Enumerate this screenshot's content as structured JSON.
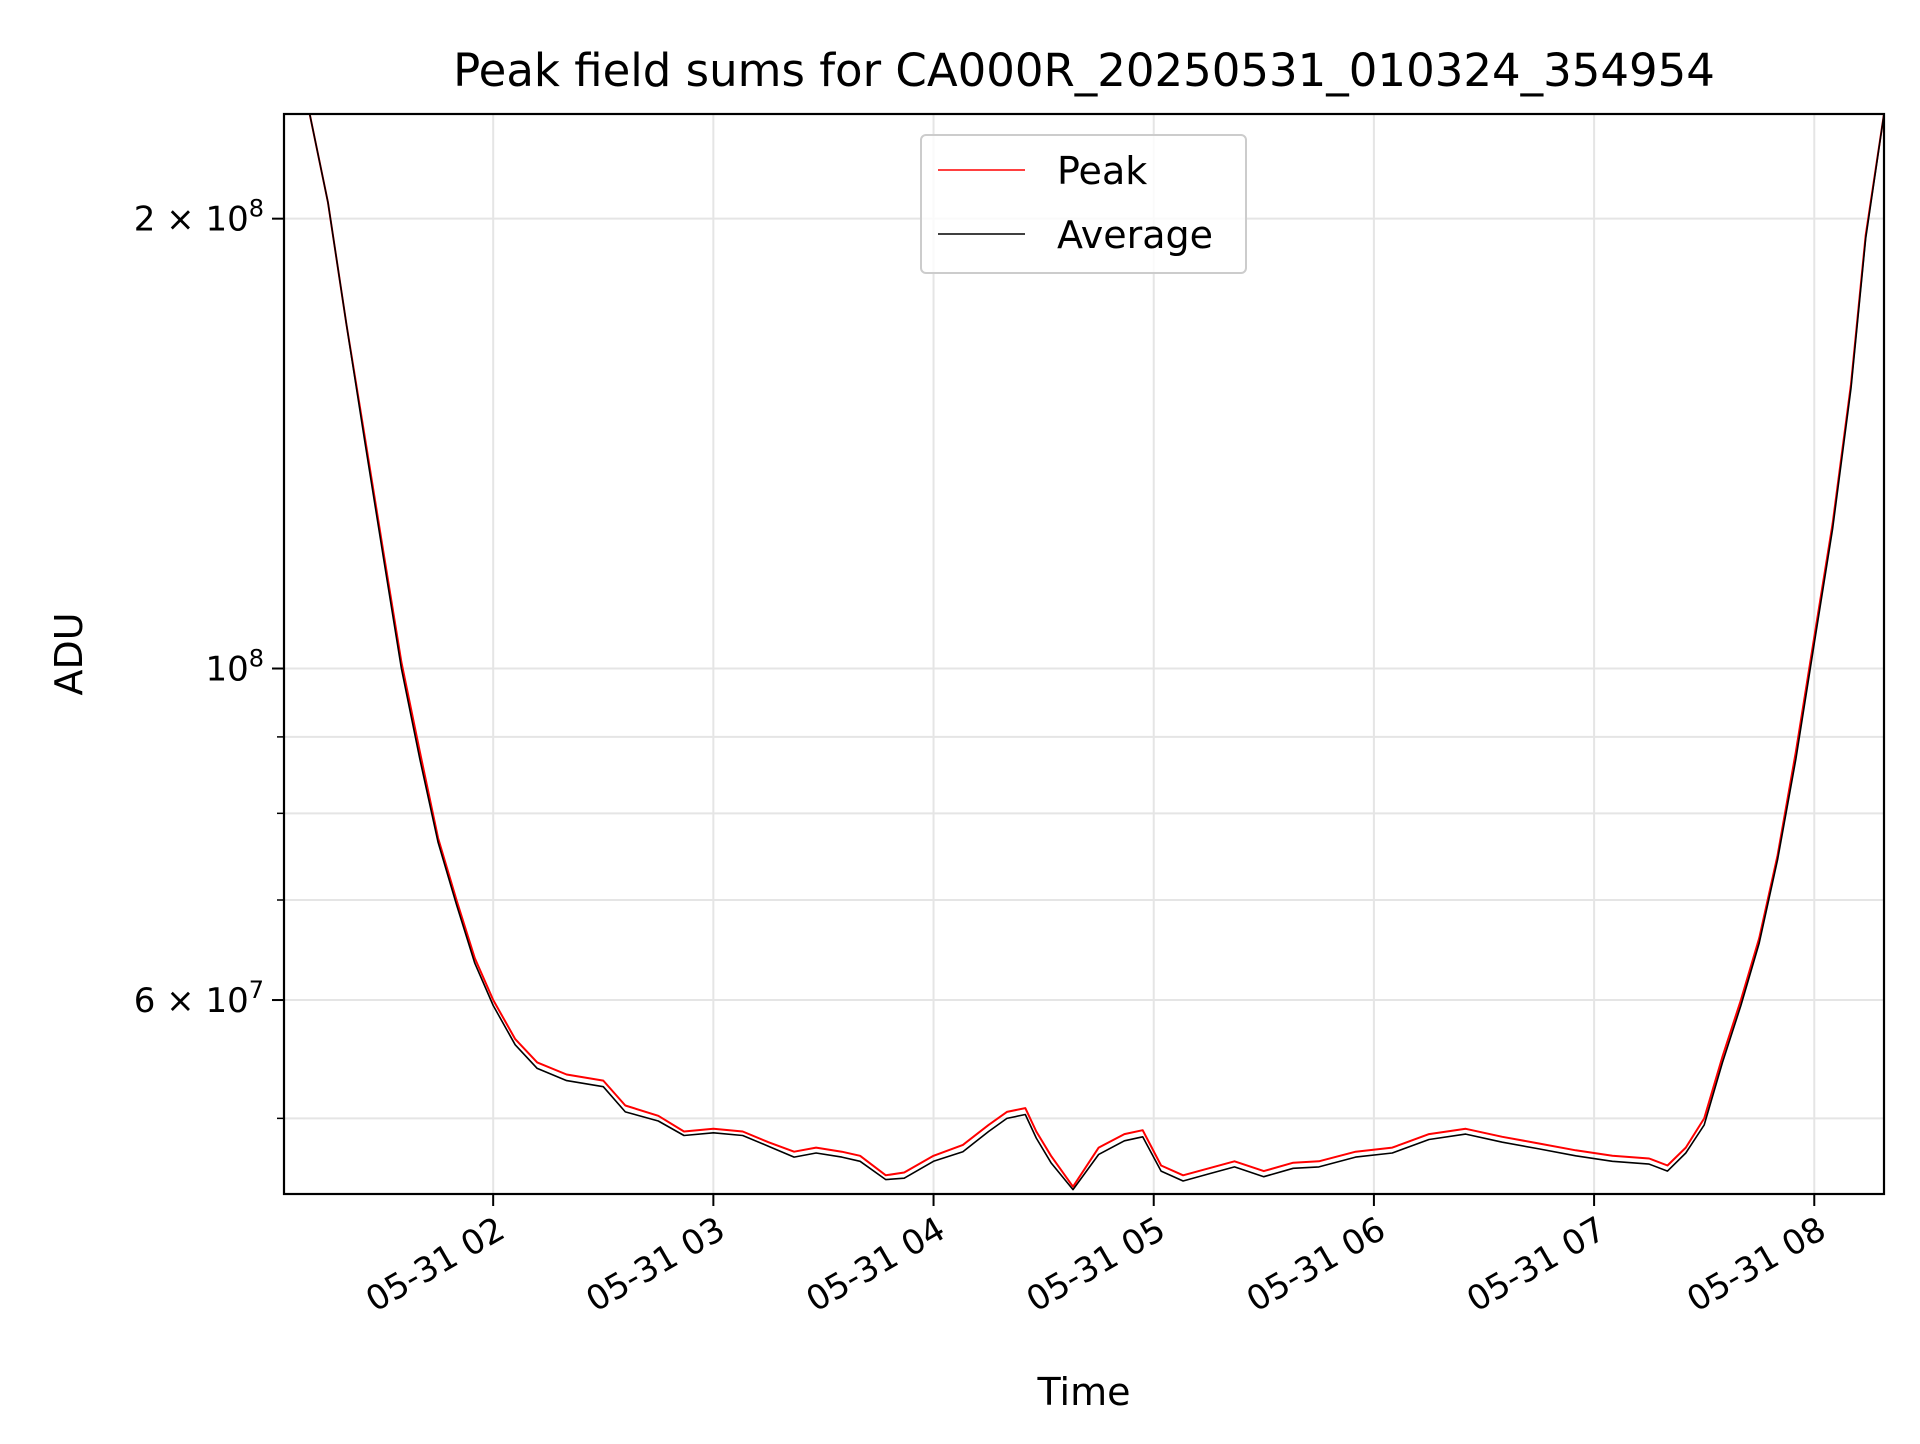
{
  "chart_data": {
    "type": "line",
    "title": "Peak field sums for CA000R_20250531_010324_354954",
    "xlabel": "Time",
    "ylabel": "ADU",
    "yscale": "log",
    "ylim": [
      44500000,
      235000000
    ],
    "xlim": [
      "2025-05-31 01:03",
      "2025-05-31 08:19"
    ],
    "grid": true,
    "legend": {
      "placement": "top-center"
    },
    "x_ticks": [
      {
        "value": "2025-05-31 02:00",
        "label": "05-31 02"
      },
      {
        "value": "2025-05-31 03:00",
        "label": "05-31 03"
      },
      {
        "value": "2025-05-31 04:00",
        "label": "05-31 04"
      },
      {
        "value": "2025-05-31 05:00",
        "label": "05-31 05"
      },
      {
        "value": "2025-05-31 06:00",
        "label": "05-31 06"
      },
      {
        "value": "2025-05-31 07:00",
        "label": "05-31 07"
      },
      {
        "value": "2025-05-31 08:00",
        "label": "05-31 08"
      }
    ],
    "y_ticks_major": [
      {
        "value": 200000000,
        "base": "2 × 10",
        "exp": "8"
      },
      {
        "value": 100000000,
        "base": "10",
        "exp": "8"
      },
      {
        "value": 60000000,
        "base": "6 × 10",
        "exp": "7"
      }
    ],
    "y_ticks_minor": [
      50000000,
      70000000,
      80000000,
      90000000
    ],
    "series": [
      {
        "name": "Peak",
        "color": "#ff0000",
        "x": [
          "2025-05-31 01:03",
          "2025-05-31 01:10",
          "2025-05-31 01:15",
          "2025-05-31 01:20",
          "2025-05-31 01:25",
          "2025-05-31 01:30",
          "2025-05-31 01:35",
          "2025-05-31 01:40",
          "2025-05-31 01:45",
          "2025-05-31 01:50",
          "2025-05-31 01:55",
          "2025-05-31 02:00",
          "2025-05-31 02:06",
          "2025-05-31 02:12",
          "2025-05-31 02:20",
          "2025-05-31 02:30",
          "2025-05-31 02:36",
          "2025-05-31 02:45",
          "2025-05-31 02:52",
          "2025-05-31 03:00",
          "2025-05-31 03:08",
          "2025-05-31 03:15",
          "2025-05-31 03:22",
          "2025-05-31 03:28",
          "2025-05-31 03:35",
          "2025-05-31 03:40",
          "2025-05-31 03:47",
          "2025-05-31 03:52",
          "2025-05-31 04:00",
          "2025-05-31 04:08",
          "2025-05-31 04:15",
          "2025-05-31 04:20",
          "2025-05-31 04:25",
          "2025-05-31 04:28",
          "2025-05-31 04:32",
          "2025-05-31 04:38",
          "2025-05-31 04:45",
          "2025-05-31 04:52",
          "2025-05-31 04:57",
          "2025-05-31 05:02",
          "2025-05-31 05:08",
          "2025-05-31 05:15",
          "2025-05-31 05:22",
          "2025-05-31 05:30",
          "2025-05-31 05:38",
          "2025-05-31 05:45",
          "2025-05-31 05:55",
          "2025-05-31 06:05",
          "2025-05-31 06:15",
          "2025-05-31 06:25",
          "2025-05-31 06:35",
          "2025-05-31 06:45",
          "2025-05-31 06:55",
          "2025-05-31 07:05",
          "2025-05-31 07:15",
          "2025-05-31 07:20",
          "2025-05-31 07:25",
          "2025-05-31 07:30",
          "2025-05-31 07:35",
          "2025-05-31 07:40",
          "2025-05-31 07:45",
          "2025-05-31 07:50",
          "2025-05-31 07:55",
          "2025-05-31 08:00",
          "2025-05-31 08:05",
          "2025-05-31 08:10",
          "2025-05-31 08:14",
          "2025-05-31 08:19"
        ],
        "values": [
          235000000,
          235000000,
          205000000,
          170000000,
          143000000,
          120000000,
          101000000,
          88000000,
          77000000,
          70000000,
          64000000,
          60000000,
          56500000,
          54500000,
          53500000,
          53000000,
          51000000,
          50200000,
          49000000,
          49200000,
          49000000,
          48200000,
          47500000,
          47800000,
          47500000,
          47200000,
          45800000,
          46000000,
          47200000,
          48000000,
          49500000,
          50500000,
          50800000,
          49000000,
          47200000,
          45000000,
          47800000,
          48800000,
          49100000,
          46500000,
          45800000,
          46300000,
          46800000,
          46100000,
          46700000,
          46800000,
          47500000,
          47800000,
          48800000,
          49200000,
          48600000,
          48100000,
          47600000,
          47200000,
          47000000,
          46500000,
          47800000,
          50000000,
          55000000,
          60000000,
          66000000,
          75000000,
          88000000,
          105000000,
          125000000,
          155000000,
          195000000,
          235000000
        ]
      },
      {
        "name": "Average",
        "color": "#000000",
        "x": [
          "2025-05-31 01:03",
          "2025-05-31 01:10",
          "2025-05-31 01:15",
          "2025-05-31 01:20",
          "2025-05-31 01:25",
          "2025-05-31 01:30",
          "2025-05-31 01:35",
          "2025-05-31 01:40",
          "2025-05-31 01:45",
          "2025-05-31 01:50",
          "2025-05-31 01:55",
          "2025-05-31 02:00",
          "2025-05-31 02:06",
          "2025-05-31 02:12",
          "2025-05-31 02:20",
          "2025-05-31 02:30",
          "2025-05-31 02:36",
          "2025-05-31 02:45",
          "2025-05-31 02:52",
          "2025-05-31 03:00",
          "2025-05-31 03:08",
          "2025-05-31 03:15",
          "2025-05-31 03:22",
          "2025-05-31 03:28",
          "2025-05-31 03:35",
          "2025-05-31 03:40",
          "2025-05-31 03:47",
          "2025-05-31 03:52",
          "2025-05-31 04:00",
          "2025-05-31 04:08",
          "2025-05-31 04:15",
          "2025-05-31 04:20",
          "2025-05-31 04:25",
          "2025-05-31 04:28",
          "2025-05-31 04:32",
          "2025-05-31 04:38",
          "2025-05-31 04:45",
          "2025-05-31 04:52",
          "2025-05-31 04:57",
          "2025-05-31 05:02",
          "2025-05-31 05:08",
          "2025-05-31 05:15",
          "2025-05-31 05:22",
          "2025-05-31 05:30",
          "2025-05-31 05:38",
          "2025-05-31 05:45",
          "2025-05-31 05:55",
          "2025-05-31 06:05",
          "2025-05-31 06:15",
          "2025-05-31 06:25",
          "2025-05-31 06:35",
          "2025-05-31 06:45",
          "2025-05-31 06:55",
          "2025-05-31 07:05",
          "2025-05-31 07:15",
          "2025-05-31 07:20",
          "2025-05-31 07:25",
          "2025-05-31 07:30",
          "2025-05-31 07:35",
          "2025-05-31 07:40",
          "2025-05-31 07:45",
          "2025-05-31 07:50",
          "2025-05-31 07:55",
          "2025-05-31 08:00",
          "2025-05-31 08:05",
          "2025-05-31 08:10",
          "2025-05-31 08:14",
          "2025-05-31 08:19"
        ],
        "values": [
          235000000,
          235000000,
          205000000,
          170000000,
          142000000,
          119000000,
          100000000,
          87000000,
          76500000,
          69500000,
          63500000,
          59500000,
          56000000,
          54000000,
          53000000,
          52500000,
          50500000,
          49800000,
          48700000,
          48900000,
          48700000,
          47900000,
          47100000,
          47400000,
          47100000,
          46800000,
          45500000,
          45600000,
          46800000,
          47500000,
          49000000,
          50000000,
          50300000,
          48500000,
          46700000,
          44800000,
          47300000,
          48300000,
          48600000,
          46100000,
          45400000,
          45900000,
          46400000,
          45700000,
          46300000,
          46400000,
          47100000,
          47400000,
          48400000,
          48800000,
          48200000,
          47700000,
          47200000,
          46800000,
          46600000,
          46100000,
          47400000,
          49500000,
          54500000,
          59500000,
          65500000,
          74500000,
          87000000,
          104000000,
          124000000,
          154000000,
          194000000,
          235000000
        ]
      }
    ]
  }
}
